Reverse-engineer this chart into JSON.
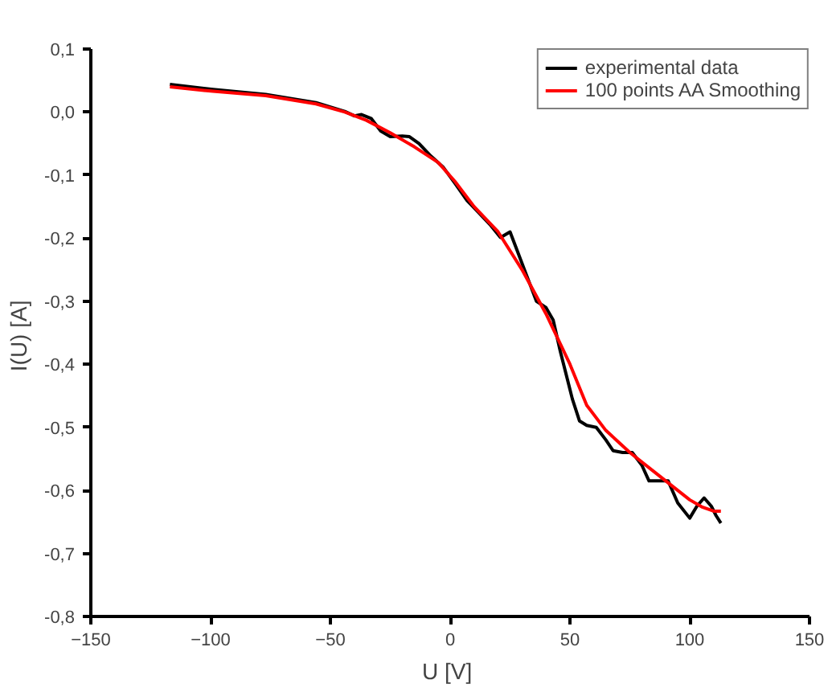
{
  "chart_data": {
    "type": "line",
    "xlabel": "U  [V]",
    "ylabel": "I(U)  [A]",
    "xlim": [
      -150,
      150
    ],
    "ylim": [
      -0.8,
      0.1
    ],
    "xticks": [
      -150,
      -100,
      -50,
      0,
      50,
      100,
      150
    ],
    "yticks": [
      {
        "value": -0.8,
        "label": "-0,8"
      },
      {
        "value": -0.7,
        "label": "-0,7"
      },
      {
        "value": -0.6,
        "label": "-0,6"
      },
      {
        "value": -0.5,
        "label": "-0,5"
      },
      {
        "value": -0.4,
        "label": "-0,4"
      },
      {
        "value": -0.3,
        "label": "-0,3"
      },
      {
        "value": -0.2,
        "label": "-0,2"
      },
      {
        "value": -0.1,
        "label": "-0,1"
      },
      {
        "value": 0.0,
        "label": "0,0"
      },
      {
        "value": 0.1,
        "label": "0,1"
      }
    ],
    "legend": "top right",
    "grid": false,
    "series": [
      {
        "name": "experimental data",
        "color": "#000000",
        "x": [
          -117,
          -99,
          -77,
          -56,
          -44,
          -40,
          -37,
          -33,
          -29,
          -25,
          -20,
          -17,
          -13,
          -8,
          -3,
          2,
          7,
          12,
          17,
          21,
          25,
          28,
          32,
          36,
          40,
          43,
          46,
          49,
          51,
          54,
          57,
          61,
          65,
          68,
          72,
          76,
          80,
          83,
          86,
          91,
          95,
          100,
          103,
          106,
          109,
          111,
          113
        ],
        "values": [
          0.044,
          0.036,
          0.028,
          0.015,
          0.001,
          -0.006,
          -0.004,
          -0.01,
          -0.03,
          -0.039,
          -0.038,
          -0.039,
          -0.05,
          -0.07,
          -0.087,
          -0.113,
          -0.14,
          -0.16,
          -0.18,
          -0.199,
          -0.19,
          -0.22,
          -0.26,
          -0.3,
          -0.31,
          -0.33,
          -0.38,
          -0.425,
          -0.455,
          -0.49,
          -0.497,
          -0.5,
          -0.52,
          -0.537,
          -0.54,
          -0.54,
          -0.56,
          -0.585,
          -0.585,
          -0.585,
          -0.62,
          -0.644,
          -0.625,
          -0.612,
          -0.625,
          -0.64,
          -0.652
        ]
      },
      {
        "name": "100 points AA Smoothing",
        "color": "#ff0000",
        "x": [
          -117,
          -99,
          -77,
          -56,
          -44,
          -35,
          -25,
          -15,
          -5,
          2,
          10,
          20,
          30,
          40,
          50,
          57,
          65,
          75,
          85,
          95,
          100,
          105,
          110,
          113
        ],
        "values": [
          0.04,
          0.033,
          0.026,
          0.013,
          0.0,
          -0.013,
          -0.033,
          -0.055,
          -0.08,
          -0.11,
          -0.15,
          -0.19,
          -0.25,
          -0.32,
          -0.4,
          -0.465,
          -0.505,
          -0.54,
          -0.57,
          -0.6,
          -0.615,
          -0.626,
          -0.633,
          -0.633
        ]
      }
    ]
  }
}
